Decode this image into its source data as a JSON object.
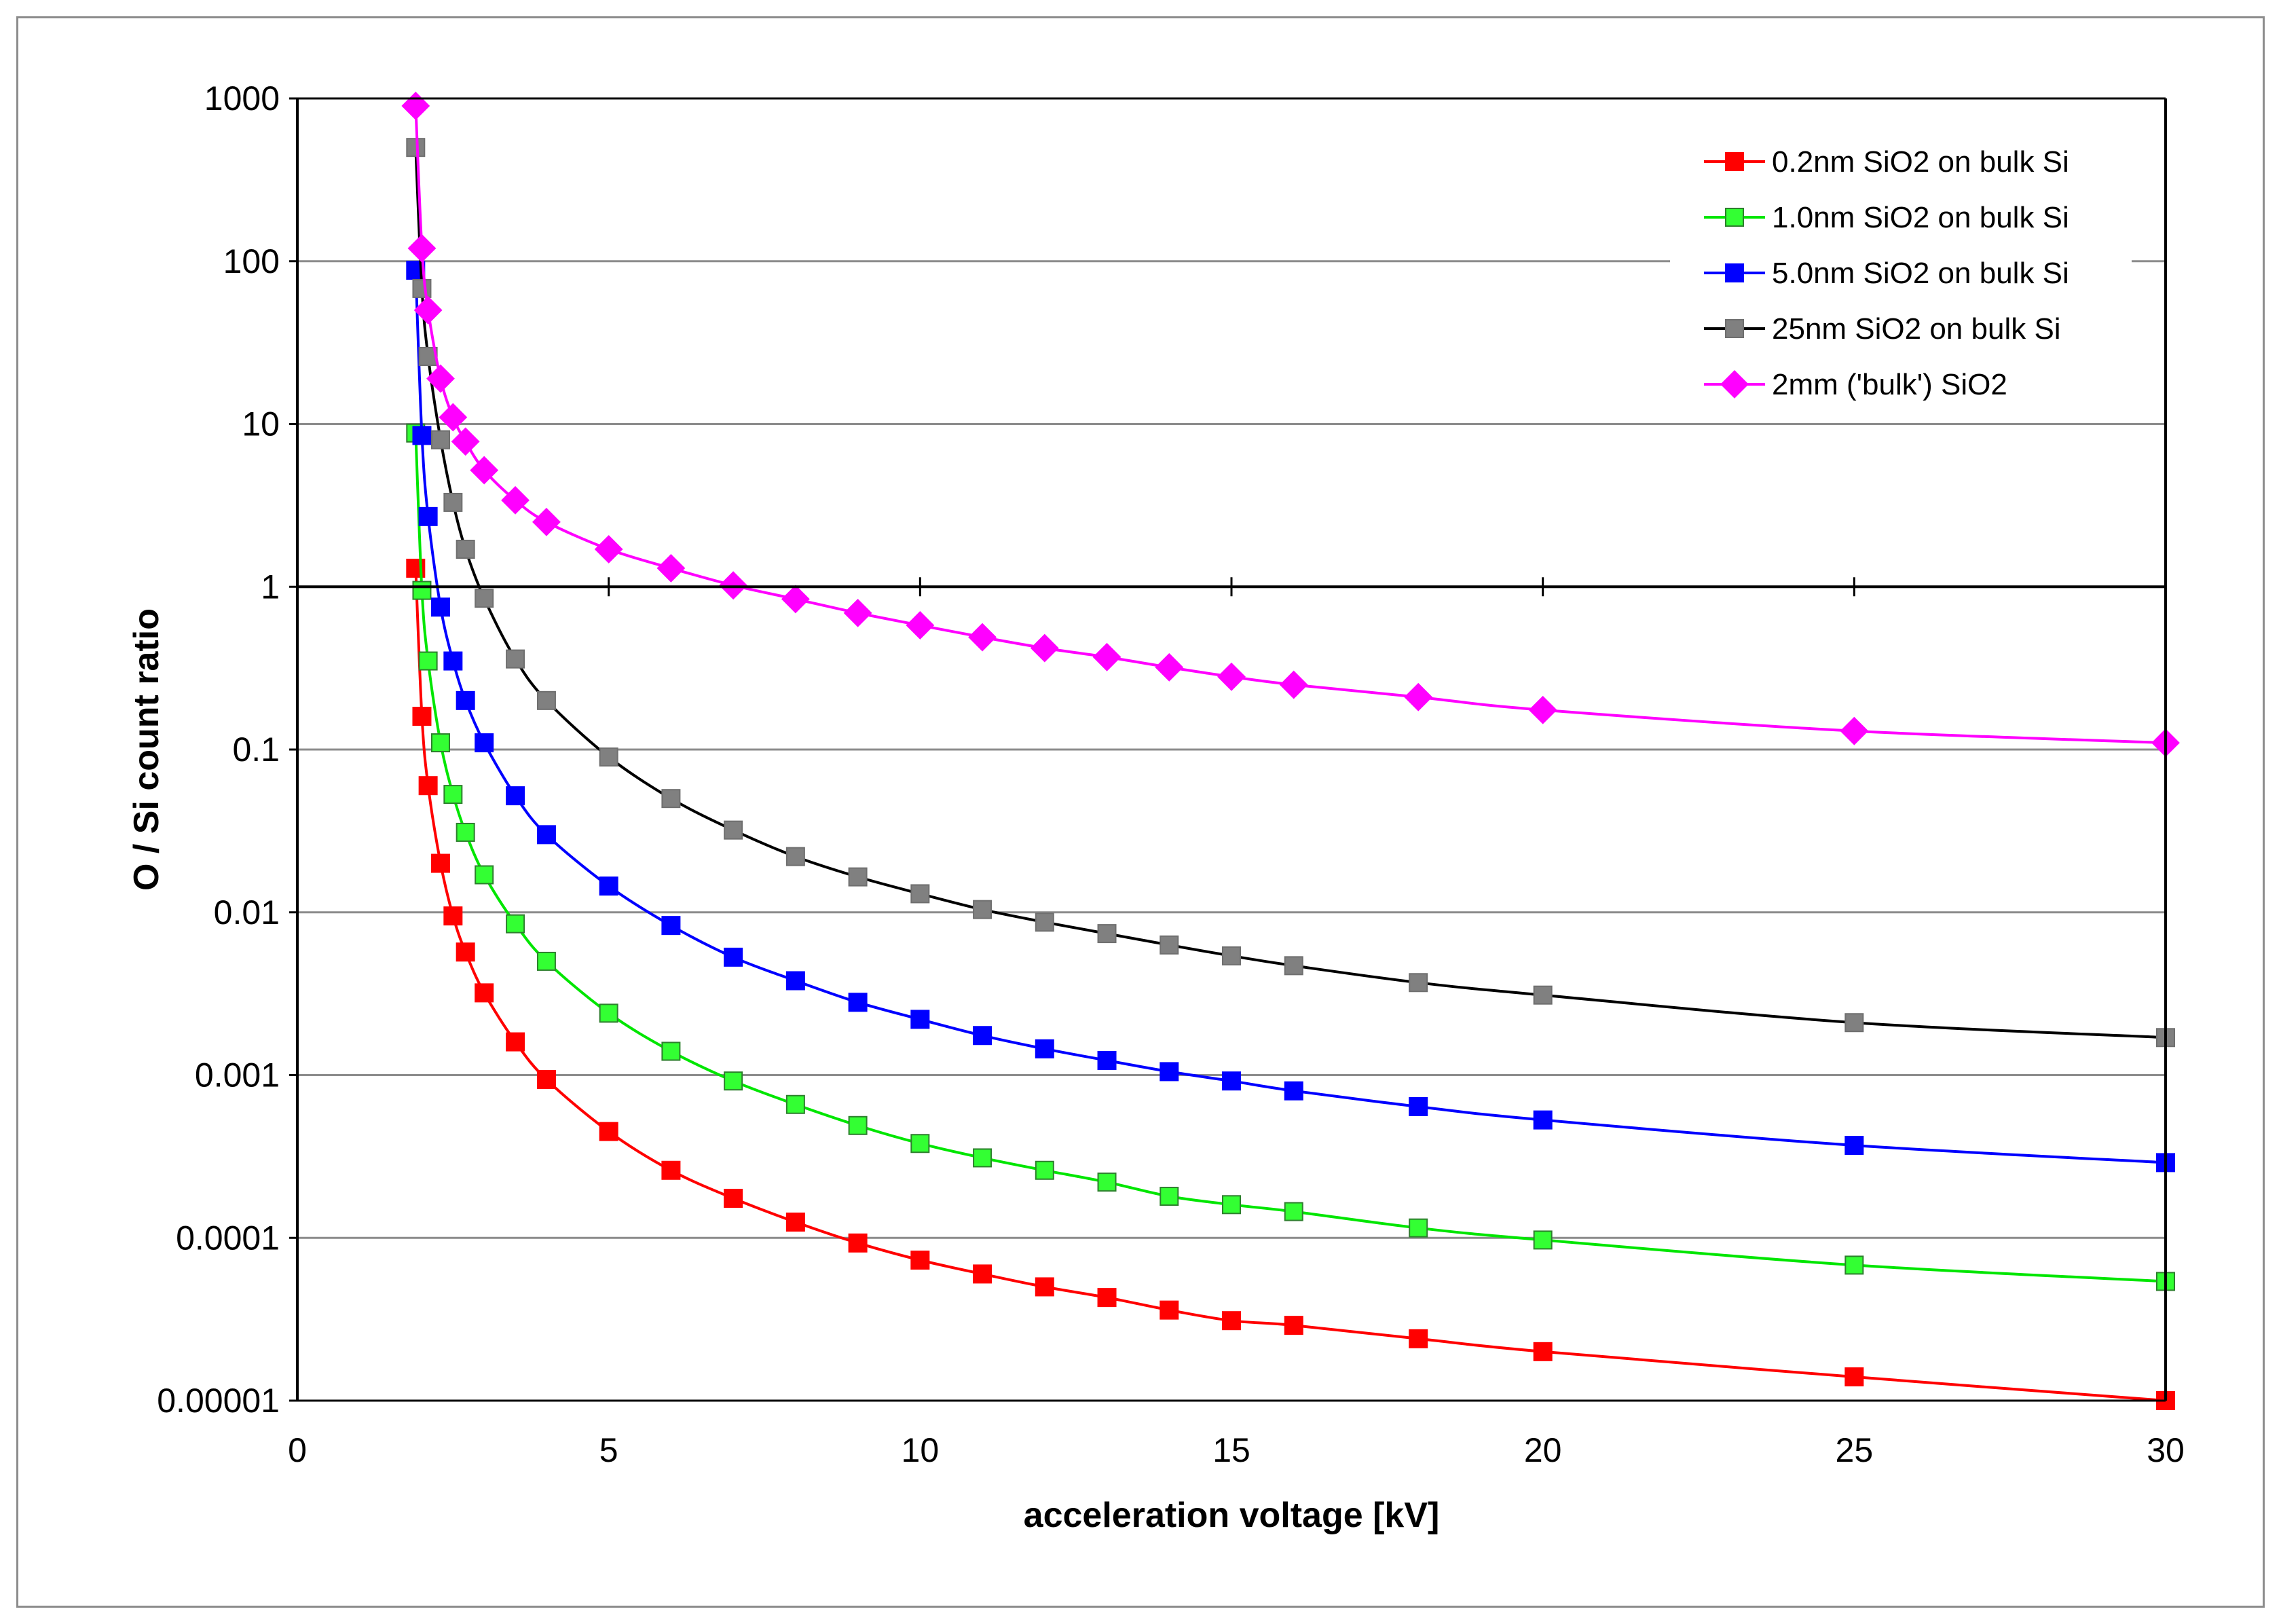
{
  "chart_data": {
    "type": "line",
    "title": "",
    "xlabel": "acceleration voltage [kV]",
    "ylabel": "O / Si count ratio",
    "xlim": [
      0,
      30
    ],
    "ylim": [
      1e-05,
      1000
    ],
    "yscale": "log",
    "grid": true,
    "legend_position": "top-right",
    "x_ticks": [
      0,
      5,
      10,
      15,
      20,
      25,
      30
    ],
    "x_tick_labels": [
      "0",
      "5",
      "10",
      "15",
      "20",
      "25",
      "30"
    ],
    "y_ticks": [
      1e-05,
      0.0001,
      0.001,
      0.01,
      0.1,
      1,
      10,
      100,
      1000
    ],
    "y_tick_labels": [
      "0.00001",
      "0.0001",
      "0.001",
      "0.01",
      "0.1",
      "1",
      "10",
      "100",
      "1000"
    ],
    "series": [
      {
        "name": "0.2nm SiO2 on bulk Si",
        "color": "#ff0000",
        "marker": "square",
        "marker_fill": "#ff0000",
        "x": [
          1.9,
          2.0,
          2.1,
          2.3,
          2.5,
          2.7,
          3,
          3.5,
          4,
          5,
          6,
          7,
          8,
          9,
          10,
          11,
          12,
          13,
          14,
          15,
          16,
          18,
          20,
          25,
          30
        ],
        "y": [
          1.3,
          0.16,
          0.06,
          0.02,
          0.0095,
          0.0057,
          0.0032,
          0.0016,
          0.00094,
          0.00045,
          0.00026,
          0.000175,
          0.000125,
          9.3e-05,
          7.3e-05,
          6e-05,
          5e-05,
          4.3e-05,
          3.6e-05,
          3.1e-05,
          2.9e-05,
          2.4e-05,
          2e-05,
          1.4e-05,
          1e-05
        ]
      },
      {
        "name": "1.0nm SiO2 on bulk Si",
        "color": "#00e600",
        "marker": "square",
        "marker_fill": "#33ff33",
        "x": [
          1.9,
          2.0,
          2.1,
          2.3,
          2.5,
          2.7,
          3,
          3.5,
          4,
          5,
          6,
          7,
          8,
          9,
          10,
          11,
          12,
          13,
          14,
          15,
          16,
          18,
          20,
          25,
          30
        ],
        "y": [
          8.8,
          0.95,
          0.35,
          0.11,
          0.053,
          0.031,
          0.017,
          0.0085,
          0.005,
          0.0024,
          0.0014,
          0.00092,
          0.00066,
          0.00049,
          0.00038,
          0.00031,
          0.00026,
          0.00022,
          0.00018,
          0.00016,
          0.000145,
          0.000115,
          9.7e-05,
          6.8e-05,
          5.4e-05
        ]
      },
      {
        "name": "5.0nm SiO2 on bulk Si",
        "color": "#0000ff",
        "marker": "square",
        "marker_fill": "#0000ff",
        "x": [
          1.9,
          2.0,
          2.1,
          2.3,
          2.5,
          2.7,
          3,
          3.5,
          4,
          5,
          6,
          7,
          8,
          9,
          10,
          11,
          12,
          13,
          14,
          15,
          16,
          18,
          20,
          25,
          30
        ],
        "y": [
          88,
          8.5,
          2.7,
          0.75,
          0.35,
          0.2,
          0.11,
          0.052,
          0.03,
          0.0145,
          0.0083,
          0.0053,
          0.0038,
          0.0028,
          0.0022,
          0.00175,
          0.00145,
          0.00123,
          0.00105,
          0.00092,
          0.0008,
          0.00064,
          0.00053,
          0.00037,
          0.00029
        ]
      },
      {
        "name": "25nm SiO2 on bulk Si",
        "color": "#000000",
        "marker": "square",
        "marker_fill": "#808080",
        "x": [
          1.9,
          2.0,
          2.1,
          2.3,
          2.5,
          2.7,
          3,
          3.5,
          4,
          5,
          6,
          7,
          8,
          9,
          10,
          11,
          12,
          13,
          14,
          15,
          16,
          18,
          20,
          25,
          30
        ],
        "y": [
          500,
          68,
          26,
          8,
          3.3,
          1.7,
          0.85,
          0.36,
          0.2,
          0.09,
          0.05,
          0.032,
          0.022,
          0.0165,
          0.013,
          0.0104,
          0.0087,
          0.0074,
          0.0063,
          0.0054,
          0.0047,
          0.0037,
          0.0031,
          0.0021,
          0.0017
        ]
      },
      {
        "name": "2mm ('bulk') SiO2",
        "color": "#ff00ff",
        "marker": "diamond",
        "marker_fill": "#ff00ff",
        "x": [
          1.9,
          2.0,
          2.1,
          2.3,
          2.5,
          2.7,
          3,
          3.5,
          4,
          5,
          6,
          7,
          8,
          9,
          10,
          11,
          12,
          13,
          14,
          15,
          16,
          18,
          20,
          25,
          30
        ],
        "y": [
          900,
          120,
          50,
          19,
          11,
          7.8,
          5.2,
          3.4,
          2.5,
          1.7,
          1.3,
          1.02,
          0.84,
          0.69,
          0.58,
          0.49,
          0.42,
          0.37,
          0.32,
          0.28,
          0.25,
          0.21,
          0.175,
          0.13,
          0.11
        ]
      }
    ]
  }
}
